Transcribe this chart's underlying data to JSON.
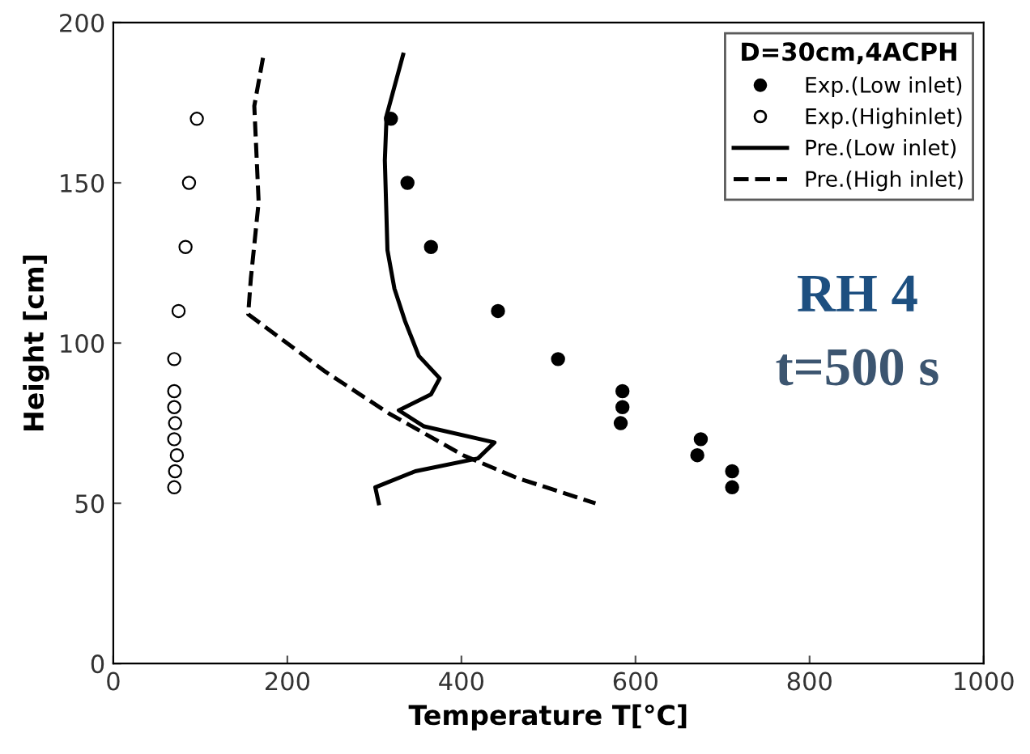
{
  "chart_data": {
    "type": "line",
    "xlabel": "Temperature T[°C]",
    "ylabel": "Height [cm]",
    "legend_title": "D=30cm,4ACPH",
    "legend": "top right",
    "grid": false,
    "xlim": [
      0,
      1000
    ],
    "xticks": [
      0,
      200,
      400,
      600,
      800,
      1000
    ],
    "ylim": [
      0,
      200
    ],
    "yticks": [
      0,
      50,
      100,
      150,
      200
    ],
    "annotations": [
      "RH 4",
      "t=500 s"
    ],
    "series": [
      {
        "name": "Exp.(Low inlet)",
        "type": "scatter",
        "marker": "circle",
        "color": "#000000",
        "x": [
          319,
          338,
          365,
          442,
          511,
          585,
          585,
          583,
          675,
          671,
          711,
          711
        ],
        "values": [
          170,
          150,
          130,
          110,
          95,
          85,
          80,
          75,
          70,
          65,
          60,
          55
        ]
      },
      {
        "name": "Exp.(Highinlet)",
        "type": "scatter",
        "marker": "circle",
        "color": "#ffffff",
        "x": [
          96,
          87,
          83,
          75,
          70,
          70,
          70,
          71,
          70,
          73,
          71,
          70
        ],
        "values": [
          170,
          150,
          130,
          110,
          95,
          85,
          80,
          75,
          70,
          65,
          60,
          55
        ]
      },
      {
        "name": "Pre.(Low inlet)",
        "line_style": "solid",
        "color": "#000000",
        "x": [
          333,
          314,
          312,
          315,
          323,
          335,
          351,
          375,
          365,
          328,
          357,
          438,
          419,
          347,
          301,
          305
        ],
        "values": [
          190,
          171,
          157,
          129,
          117,
          107,
          96,
          89,
          84,
          79,
          74,
          69,
          64,
          60,
          55,
          50
        ]
      },
      {
        "name": "Pre.(High inlet)",
        "line_style": "dashed",
        "color": "#000000",
        "x": [
          172,
          162,
          167,
          158,
          155,
          244,
          317,
          402,
          463,
          554
        ],
        "values": [
          189,
          174,
          144,
          120,
          109,
          91,
          78,
          65,
          58,
          50
        ]
      }
    ]
  }
}
